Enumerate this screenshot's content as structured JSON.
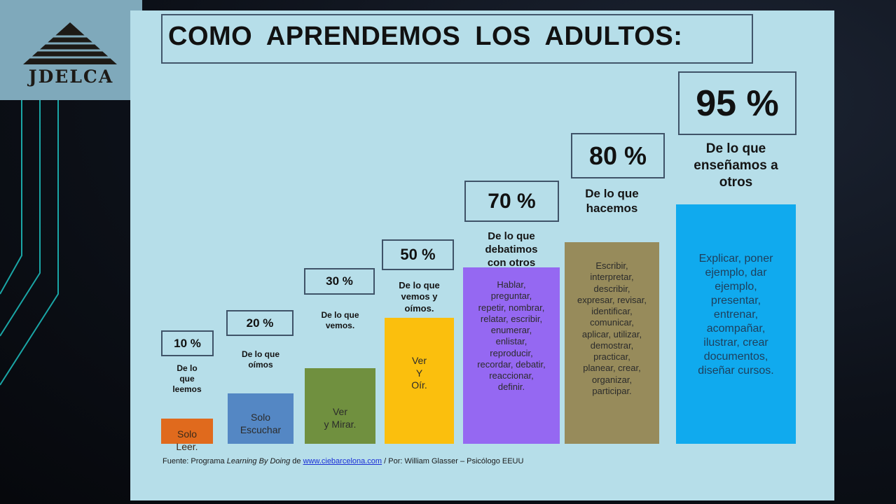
{
  "logo": {
    "text": "JDELCA"
  },
  "title": "COMO APRENDEMOS LOS ADULTOS:",
  "chart_data": {
    "type": "bar",
    "categories": [
      "Solo Leer.",
      "Solo Escuchar",
      "Ver y Mirar.",
      "Ver Y Oír.",
      "Hablar, preguntar...",
      "Escribir, interpretar...",
      "Explicar, poner ejemplo..."
    ],
    "values": [
      10,
      20,
      30,
      50,
      70,
      80,
      95
    ],
    "colors": [
      "#e06a1d",
      "#5487c4",
      "#70903f",
      "#fbbf0d",
      "#9568f2",
      "#978b5b",
      "#10aaee"
    ],
    "items": [
      {
        "pct": "10 %",
        "caption": "De lo\nque\nleemos",
        "bar_text": "Solo\nLeer."
      },
      {
        "pct": "20 %",
        "caption": "De lo que\noímos",
        "bar_text": "Solo\nEscuchar"
      },
      {
        "pct": "30 %",
        "caption": "De lo que\nvemos.",
        "bar_text": "Ver\ny Mirar."
      },
      {
        "pct": "50 %",
        "caption": "De lo que\nvemos y\noímos.",
        "bar_text": "Ver\nY\nOír."
      },
      {
        "pct": "70 %",
        "caption": "De lo que\ndebatimos\ncon otros",
        "bar_text": "Hablar,\npreguntar,\nrepetir, nombrar,\nrelatar, escribir,\nenumerar,\nenlistar,\nreproducir,\nrecordar, debatir,\nreaccionar,\ndefinir."
      },
      {
        "pct": "80 %",
        "caption": "De lo que\nhacemos",
        "bar_text": "Escribir,\ninterpretar,\ndescribir,\nexpresar, revisar,\nidentificar,\ncomunicar,\naplicar, utilizar,\ndemostrar,\npracticar,\nplanear, crear,\norganizar,\nparticipar."
      },
      {
        "pct": "95 %",
        "caption": "De lo que\nenseñamos a\notros",
        "bar_text": "Explicar, poner\nejemplo, dar\nejemplo,\npresentar,\nentrenar,\nacompañar,\nilustrar, crear\ndocumentos,\ndiseñar cursos."
      }
    ]
  },
  "source": {
    "prefix": "Fuente: Programa ",
    "italic": "Learning By Doing",
    "de": " de ",
    "link": "www.ciebarcelona.com",
    "suffix": " /  Por: William Glasser – Psicólogo EEUU"
  }
}
